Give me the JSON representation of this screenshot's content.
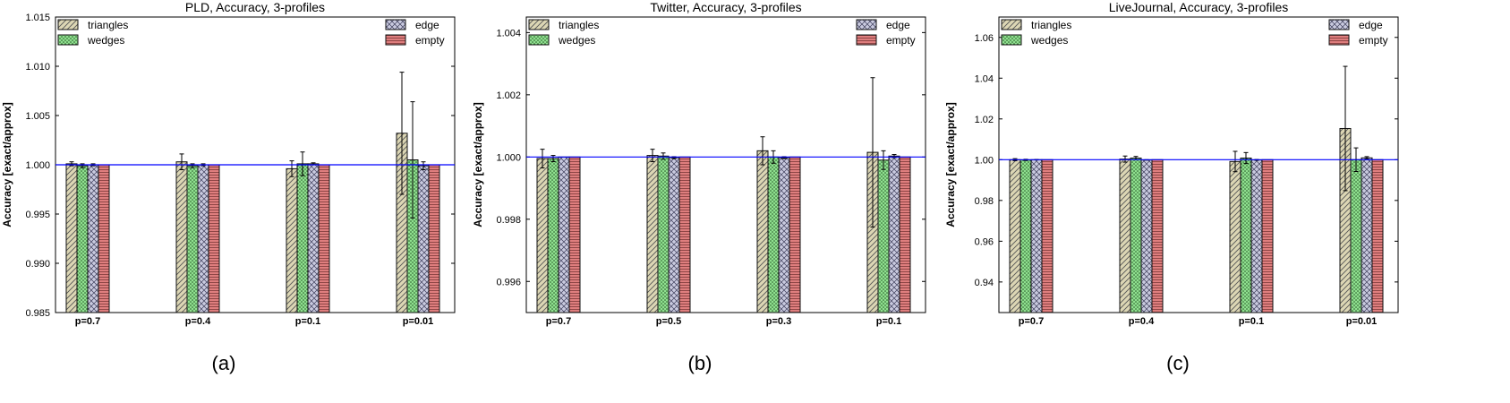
{
  "figure": {
    "captions": [
      "(a)",
      "(b)",
      "(c)"
    ]
  },
  "colors": {
    "triangles": "#dcd6b4",
    "wedges": "#8fe08f",
    "edge": "#c9cadf",
    "empty": "#df7e7e",
    "reference_line": "#0000ff",
    "axis": "#000000"
  },
  "chart_data": [
    {
      "type": "bar",
      "title": "PLD, Accuracy, 3-profiles",
      "xlabel": "",
      "ylabel": "Accuracy [exact/approx]",
      "categories": [
        "p=0.7",
        "p=0.4",
        "p=0.1",
        "p=0.01"
      ],
      "ylim": [
        0.985,
        1.015
      ],
      "yticks": [
        "0.985",
        "0.990",
        "0.995",
        "1.000",
        "1.005",
        "1.010",
        "1.015"
      ],
      "reference_line": 1.0,
      "grid": false,
      "legend_position": "top",
      "series": [
        {
          "name": "triangles",
          "values": [
            1.0001,
            1.0003,
            0.9996,
            1.0032
          ],
          "errors": [
            0.0002,
            0.0008,
            0.0008,
            0.0062
          ]
        },
        {
          "name": "wedges",
          "values": [
            0.9999,
            0.9999,
            1.0001,
            1.0005
          ],
          "errors": [
            0.0002,
            0.0002,
            0.0012,
            0.0059
          ]
        },
        {
          "name": "edge",
          "values": [
            1.0,
            1.0,
            1.0001,
            0.9999
          ],
          "errors": [
            0.0001,
            0.0001,
            0.0001,
            0.0004
          ]
        },
        {
          "name": "empty",
          "values": [
            1.0,
            1.0,
            1.0,
            1.0
          ],
          "errors": [
            0,
            0,
            0,
            0
          ]
        }
      ]
    },
    {
      "type": "bar",
      "title": "Twitter, Accuracy, 3-profiles",
      "xlabel": "",
      "ylabel": "Accuracy [exact/approx]",
      "categories": [
        "p=0.7",
        "p=0.5",
        "p=0.3",
        "p=0.1"
      ],
      "ylim": [
        0.995,
        1.0045
      ],
      "yticks": [
        "0.996",
        "0.998",
        "1.000",
        "1.002",
        "1.004"
      ],
      "reference_line": 1.0,
      "grid": false,
      "legend_position": "top",
      "series": [
        {
          "name": "triangles",
          "values": [
            0.99995,
            1.00005,
            1.0002,
            1.00015
          ],
          "errors": [
            0.0003,
            0.0002,
            0.00045,
            0.0024
          ]
        },
        {
          "name": "wedges",
          "values": [
            0.99995,
            1.00003,
            1.0,
            0.9999
          ],
          "errors": [
            0.0001,
            0.0001,
            0.0002,
            0.0003
          ]
        },
        {
          "name": "edge",
          "values": [
            1.0,
            0.99998,
            0.99998,
            1.00003
          ],
          "errors": [
            0.0,
            3e-05,
            3e-05,
            5e-05
          ]
        },
        {
          "name": "empty",
          "values": [
            1.0,
            1.0,
            1.0,
            1.0
          ],
          "errors": [
            0,
            0,
            0,
            0
          ]
        }
      ]
    },
    {
      "type": "bar",
      "title": "LiveJournal, Accuracy, 3-profiles",
      "xlabel": "",
      "ylabel": "Accuracy [exact/approx]",
      "categories": [
        "p=0.7",
        "p=0.4",
        "p=0.1",
        "p=0.01"
      ],
      "ylim": [
        0.925,
        1.07
      ],
      "yticks": [
        "0.94",
        "0.96",
        "0.98",
        "1.00",
        "1.02",
        "1.04",
        "1.06"
      ],
      "reference_line": 1.0,
      "grid": false,
      "legend_position": "top",
      "series": [
        {
          "name": "triangles",
          "values": [
            1.0,
            1.0003,
            0.9991,
            1.0153
          ],
          "errors": [
            0.0005,
            0.0015,
            0.005,
            0.0305
          ]
        },
        {
          "name": "wedges",
          "values": [
            0.9999,
            1.0008,
            1.0008,
            1.0
          ],
          "errors": [
            0.0003,
            0.0008,
            0.0027,
            0.0058
          ]
        },
        {
          "name": "edge",
          "values": [
            1.0,
            0.9999,
            0.9999,
            1.0009
          ],
          "errors": [
            0.0001,
            0.0001,
            0.0002,
            0.0006
          ]
        },
        {
          "name": "empty",
          "values": [
            1.0,
            1.0,
            1.0,
            1.0
          ],
          "errors": [
            0,
            0,
            0,
            0
          ]
        }
      ]
    }
  ]
}
